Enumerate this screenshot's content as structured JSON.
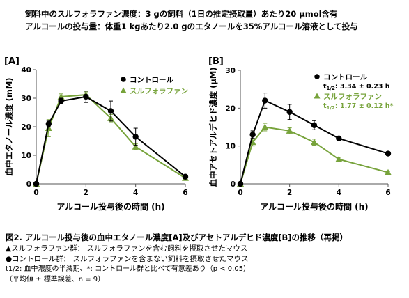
{
  "header": {
    "line1": "飼料中のスルフォラファン濃度：3 gの飼料（1日の推定摂取量）あたり20 μmol含有",
    "line2": "アルコールの投与量：体重1 kgあたり2.0 gのエタノールを35%アルコール溶液として投与"
  },
  "colors": {
    "control": "#000000",
    "sulforaphane": "#77a33b",
    "axis": "#555555"
  },
  "chart_data": [
    {
      "panel": "[A]",
      "type": "line",
      "xlabel": "アルコール投与後の時間 (h)",
      "ylabel": "血中エタノール濃度 (mM)",
      "xlim": [
        0,
        6
      ],
      "ylim": [
        0,
        40
      ],
      "xticks": [
        0,
        2,
        4,
        6
      ],
      "yticks": [
        0,
        10,
        20,
        30,
        40
      ],
      "legend_position": "top-right",
      "x": [
        0,
        0.5,
        1,
        2,
        3,
        4,
        6
      ],
      "series": [
        {
          "name": "コントロール",
          "marker": "circle",
          "color": "#000000",
          "values": [
            0,
            21,
            29,
            30.5,
            25.5,
            16.5,
            2.5
          ],
          "errors": [
            0,
            1,
            1,
            2,
            3.5,
            3,
            0.5
          ]
        },
        {
          "name": "スルフォラファン",
          "marker": "triangle",
          "color": "#77a33b",
          "values": [
            0,
            19.5,
            30.5,
            31.2,
            23,
            13,
            2
          ],
          "errors": [
            0,
            3,
            1,
            1,
            1.3,
            1,
            0.5
          ]
        }
      ]
    },
    {
      "panel": "[B]",
      "type": "line",
      "xlabel": "アルコール投与後の時間 (h)",
      "ylabel": "血中アセトアルデヒド濃度 (μM)",
      "xlim": [
        0,
        6
      ],
      "ylim": [
        0,
        30
      ],
      "xticks": [
        0,
        2,
        4,
        6
      ],
      "yticks": [
        0,
        10,
        20,
        30
      ],
      "legend_position": "top-right",
      "x": [
        0,
        0.5,
        1,
        2,
        3,
        4,
        6
      ],
      "series": [
        {
          "name": "コントロール",
          "marker": "circle",
          "color": "#000000",
          "values": [
            0,
            13,
            22,
            19,
            15.5,
            12,
            8
          ],
          "errors": [
            0,
            1,
            2,
            2,
            1.2,
            0.6,
            0.5
          ],
          "halflife_label": "t",
          "halflife_sub": "1/2",
          "halflife_value": ": 3.34 ± 0.23 h"
        },
        {
          "name": "スルフォラファン",
          "marker": "triangle",
          "color": "#77a33b",
          "values": [
            0,
            11,
            15,
            14,
            11,
            6.5,
            3
          ],
          "errors": [
            0,
            1,
            1,
            0.8,
            0.8,
            0.5,
            0.3
          ],
          "halflife_label": "t",
          "halflife_sub": "1/2",
          "halflife_value": ": 1.77 ± 0.12 h*"
        }
      ]
    }
  ],
  "caption": {
    "title": "図2. アルコール投与後の血中エタノール濃度[A]及びアセトアルデヒド濃度[B]の推移（再掲）",
    "line1": "▲スルフォラファン群：  スルフォラファンを含む飼料を摂取させたマウス",
    "line2": "●コントロール群：  スルフォラファンを含まない飼料を摂取させたマウス",
    "line3": "t1/2: 血中濃度の半減期、*: コントロール群と比べて有意差あり（p < 0.05）",
    "line4": "（平均値 ± 標準誤差、n = 9）"
  }
}
